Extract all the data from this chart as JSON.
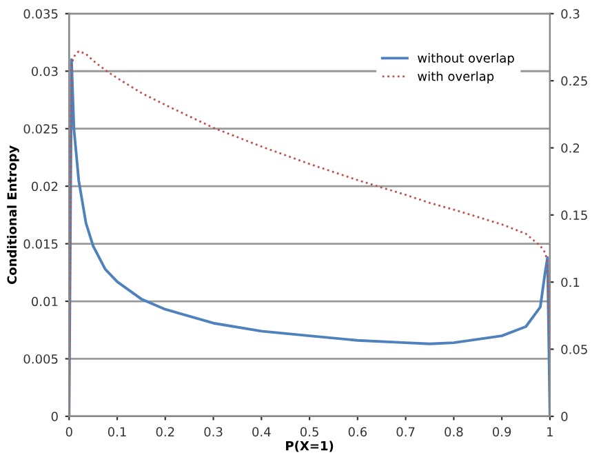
{
  "chart_data": {
    "type": "line",
    "xlabel": "P(X=1)",
    "ylabel": "Conditional Entropy",
    "x": [
      0,
      0.005,
      0.01,
      0.02,
      0.035,
      0.05,
      0.075,
      0.1,
      0.15,
      0.2,
      0.3,
      0.4,
      0.5,
      0.6,
      0.7,
      0.75,
      0.8,
      0.9,
      0.95,
      0.98,
      0.99,
      0.995,
      1
    ],
    "series": [
      {
        "name": "without overlap",
        "color": "#4f81bd",
        "line_style": "solid",
        "values": [
          0,
          0.031,
          0.025,
          0.0205,
          0.0168,
          0.0148,
          0.0128,
          0.0117,
          0.0102,
          0.0093,
          0.0081,
          0.0074,
          0.007,
          0.0066,
          0.0064,
          0.0063,
          0.0064,
          0.007,
          0.0078,
          0.0095,
          0.0125,
          0.0138,
          0
        ]
      },
      {
        "name": "with overlap",
        "color": "#c0504d",
        "line_style": "dotted",
        "axis": "y2",
        "values": [
          0,
          0.262,
          0.268,
          0.272,
          0.27,
          0.265,
          0.258,
          0.252,
          0.241,
          0.232,
          0.215,
          0.201,
          0.188,
          0.176,
          0.165,
          0.159,
          0.154,
          0.143,
          0.136,
          0.127,
          0.122,
          0.115,
          0.045
        ]
      }
    ],
    "xlim": [
      0,
      1
    ],
    "xticks": [
      0,
      0.1,
      0.2,
      0.3,
      0.4,
      0.5,
      0.6,
      0.7,
      0.8,
      0.9,
      1
    ],
    "ylim": [
      0,
      0.035
    ],
    "yticks": [
      0,
      0.005,
      0.01,
      0.015,
      0.02,
      0.025,
      0.03,
      0.035
    ],
    "y2lim": [
      0,
      0.3
    ],
    "y2ticks": [
      0,
      0.05,
      0.1,
      0.15,
      0.2,
      0.25,
      0.3
    ],
    "grid": "y",
    "legend": "top right"
  }
}
